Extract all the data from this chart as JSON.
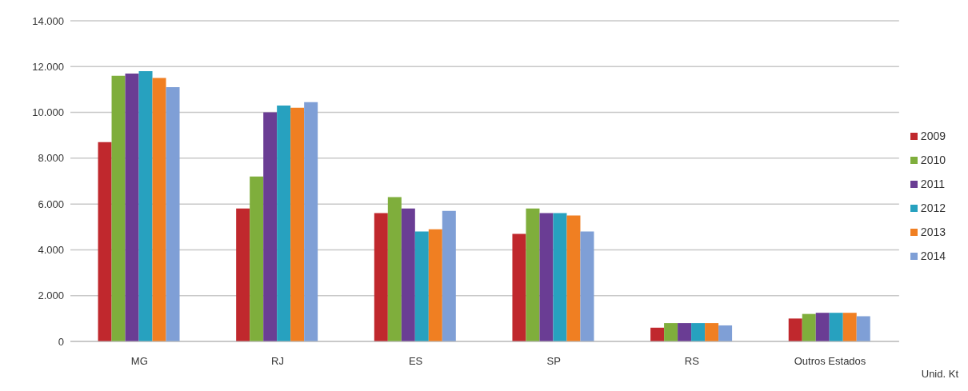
{
  "chart_data": {
    "type": "bar",
    "categories": [
      "MG",
      "RJ",
      "ES",
      "SP",
      "RS",
      "Outros Estados"
    ],
    "series": [
      {
        "name": "2009",
        "color": "#c0282d",
        "values": [
          8700,
          5800,
          5600,
          4700,
          600,
          1000
        ]
      },
      {
        "name": "2010",
        "color": "#7fae3c",
        "values": [
          11600,
          7200,
          6300,
          5800,
          800,
          1200
        ]
      },
      {
        "name": "2011",
        "color": "#6a3d94",
        "values": [
          11700,
          10000,
          5800,
          5600,
          800,
          1250
        ]
      },
      {
        "name": "2012",
        "color": "#27a1bf",
        "values": [
          11800,
          10300,
          4800,
          5600,
          800,
          1250
        ]
      },
      {
        "name": "2013",
        "color": "#f07f22",
        "values": [
          11500,
          10200,
          4900,
          5500,
          800,
          1250
        ]
      },
      {
        "name": "2014",
        "color": "#7f9fd6",
        "values": [
          11100,
          10450,
          5700,
          4800,
          700,
          1100
        ]
      }
    ],
    "ylim": [
      0,
      14000
    ],
    "yticks": [
      {
        "value": 0,
        "label": "0"
      },
      {
        "value": 2000,
        "label": "2.000"
      },
      {
        "value": 4000,
        "label": "4.000"
      },
      {
        "value": 6000,
        "label": "6.000"
      },
      {
        "value": 8000,
        "label": "8.000"
      },
      {
        "value": 10000,
        "label": "10.000"
      },
      {
        "value": 12000,
        "label": "12.000"
      },
      {
        "value": 14000,
        "label": "14.000"
      }
    ],
    "grid": "y",
    "legend": "right",
    "annotations": [
      "Unid. Kt"
    ]
  }
}
